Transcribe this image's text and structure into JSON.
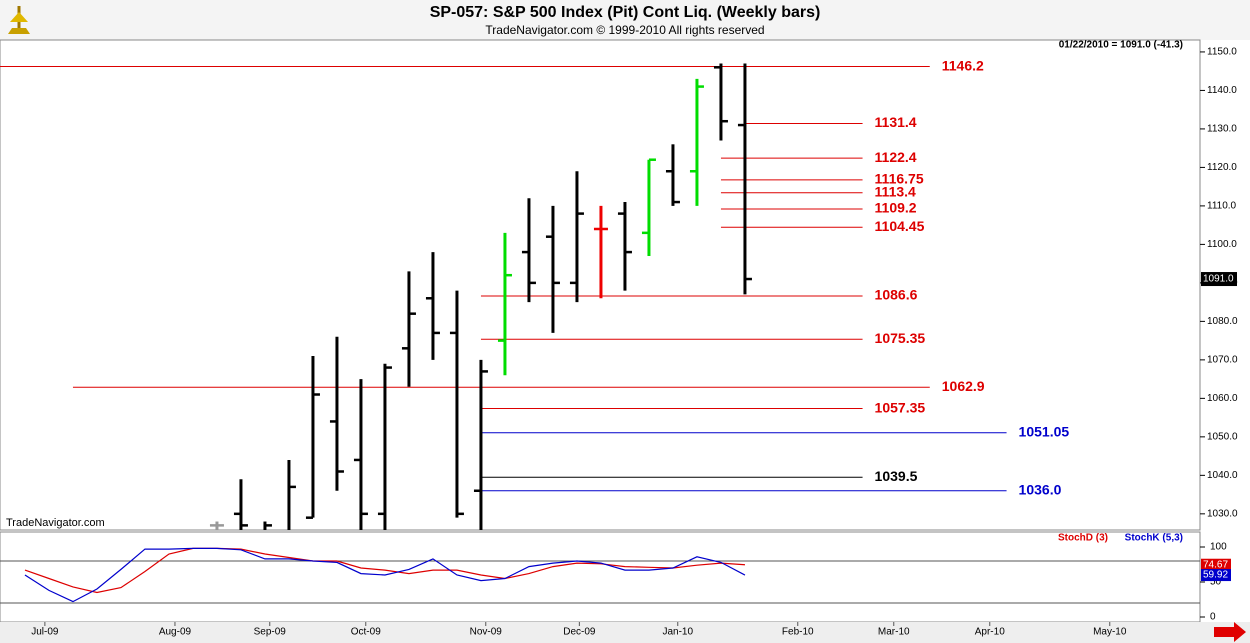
{
  "chart_data": [
    {
      "type": "ohlc",
      "title": "SP-057:  S&P 500 Index (Pit) Cont Liq.  (Weekly bars)",
      "subtitle": "TradeNavigator.com © 1999-2010 All rights reserved",
      "annotation": "01/22/2010 = 1091.0 (-41.3)",
      "watermark": "TradeNavigator.com",
      "xlim": [
        -2.04,
        47.96
      ],
      "x": [
        7,
        8,
        9,
        10,
        11,
        12,
        13,
        14,
        15,
        16,
        17,
        18,
        19,
        20,
        21,
        22,
        23,
        24,
        25,
        26,
        27,
        28,
        29
      ],
      "open": [
        1027,
        1030,
        1025,
        1025,
        1029,
        1054,
        1044,
        1030,
        1073,
        1086,
        1077,
        1036,
        1075,
        1098,
        1102,
        1090,
        1104,
        1108,
        1103,
        1119,
        1119,
        1146,
        1131
      ],
      "high": [
        1028,
        1039,
        1028,
        1044,
        1071,
        1076,
        1065,
        1069,
        1093,
        1098,
        1088,
        1070,
        1103,
        1112,
        1110,
        1119,
        1110,
        1111,
        1122,
        1126,
        1143,
        1147,
        1147
      ],
      "low": [
        1020,
        1020,
        1020,
        1020,
        1029,
        1036,
        1020,
        1020,
        1063,
        1070,
        1029,
        1020,
        1066,
        1085,
        1077,
        1085,
        1086,
        1088,
        1097,
        1110,
        1110,
        1127,
        1087
      ],
      "close": [
        1027,
        1027,
        1027,
        1037,
        1061,
        1041,
        1030,
        1068,
        1082,
        1077,
        1030,
        1067,
        1092,
        1090,
        1090,
        1108,
        1104,
        1098,
        1122,
        1111,
        1141,
        1132,
        1091
      ],
      "colors": [
        "#999999",
        "#000000",
        "#000000",
        "#000000",
        "#000000",
        "#000000",
        "#000000",
        "#000000",
        "#000000",
        "#000000",
        "#000000",
        "#000000",
        "#00dd00",
        "#000000",
        "#000000",
        "#000000",
        "#ee0000",
        "#000000",
        "#00dd00",
        "#000000",
        "#00dd00",
        "#000000",
        "#000000"
      ],
      "last_label": "1091.0",
      "ylim": [
        1025.8,
        1153.1
      ],
      "yticks": [
        {
          "value": 1030,
          "label": "1030.0"
        },
        {
          "value": 1040,
          "label": "1040.0"
        },
        {
          "value": 1050,
          "label": "1050.0"
        },
        {
          "value": 1060,
          "label": "1060.0"
        },
        {
          "value": 1070,
          "label": "1070.0"
        },
        {
          "value": 1080,
          "label": "1080.0"
        },
        {
          "value": 1090,
          "label": "1090.0"
        },
        {
          "value": 1100,
          "label": "1100.0"
        },
        {
          "value": 1110,
          "label": "1110.0"
        },
        {
          "value": 1120,
          "label": "1120.0"
        },
        {
          "value": 1130,
          "label": "1130.0"
        },
        {
          "value": 1140,
          "label": "1140.0"
        },
        {
          "value": 1150,
          "label": "1150.0"
        }
      ],
      "levels": [
        {
          "value": 1146.2,
          "label": "1146.2",
          "color": "#dd0000",
          "from": -2.04,
          "to": 36.7
        },
        {
          "value": 1131.4,
          "label": "1131.4",
          "color": "#dd0000",
          "from": 29,
          "to": 33.9
        },
        {
          "value": 1122.4,
          "label": "1122.4",
          "color": "#dd0000",
          "from": 28,
          "to": 33.9
        },
        {
          "value": 1116.75,
          "label": "1116.75",
          "color": "#dd0000",
          "from": 28,
          "to": 33.9
        },
        {
          "value": 1113.4,
          "label": "1113.4",
          "color": "#dd0000",
          "from": 28,
          "to": 33.9
        },
        {
          "value": 1109.2,
          "label": "1109.2",
          "color": "#dd0000",
          "from": 28,
          "to": 33.9
        },
        {
          "value": 1104.45,
          "label": "1104.45",
          "color": "#dd0000",
          "from": 28,
          "to": 33.9
        },
        {
          "value": 1086.6,
          "label": "1086.6",
          "color": "#dd0000",
          "from": 18,
          "to": 33.9
        },
        {
          "value": 1075.35,
          "label": "1075.35",
          "color": "#dd0000",
          "from": 18,
          "to": 33.9
        },
        {
          "value": 1062.9,
          "label": "1062.9",
          "color": "#dd0000",
          "from": 1,
          "to": 36.7
        },
        {
          "value": 1057.35,
          "label": "1057.35",
          "color": "#dd0000",
          "from": 18,
          "to": 33.9
        },
        {
          "value": 1051.05,
          "label": "1051.05",
          "color": "#0000cc",
          "from": 18,
          "to": 39.9
        },
        {
          "value": 1039.5,
          "label": "1039.5",
          "color": "#000000",
          "from": 18,
          "to": 33.9
        },
        {
          "value": 1036,
          "label": "1036.0",
          "color": "#0000cc",
          "from": 18,
          "to": 39.9
        }
      ]
    },
    {
      "type": "line",
      "xlim": [
        -2.04,
        47.96
      ],
      "x": [
        -1,
        0,
        1,
        2,
        3,
        4,
        5,
        6,
        7,
        8,
        9,
        10,
        11,
        12,
        13,
        14,
        15,
        16,
        17,
        18,
        19,
        20,
        21,
        22,
        23,
        24,
        25,
        26,
        27,
        28,
        29
      ],
      "series": [
        {
          "name": "StochD (3)",
          "color": "#dd0000",
          "values": [
            67,
            55,
            43,
            35,
            42,
            65,
            90,
            98,
            98,
            97,
            90,
            85,
            80,
            80,
            70,
            67,
            62,
            67,
            67,
            60,
            55,
            62,
            72,
            77,
            76,
            72,
            71,
            70,
            74,
            77,
            74.67
          ]
        },
        {
          "name": "StochK (5,3)",
          "color": "#0000cc",
          "values": [
            60,
            38,
            22,
            40,
            68,
            97,
            97,
            98,
            98,
            96,
            83,
            83,
            80,
            78,
            62,
            60,
            68,
            83,
            60,
            52,
            55,
            72,
            77,
            80,
            77,
            67,
            67,
            70,
            86,
            78,
            59.92
          ]
        }
      ],
      "ylim": [
        -7.14,
        121.43
      ],
      "yticks": [
        0,
        50,
        100
      ],
      "hlines": [
        20,
        80
      ],
      "xticks": [
        {
          "value": -0.17,
          "label": "Jul-09"
        },
        {
          "value": 5.25,
          "label": "Aug-09"
        },
        {
          "value": 9.2,
          "label": "Sep-09"
        },
        {
          "value": 13.2,
          "label": "Oct-09"
        },
        {
          "value": 18.2,
          "label": "Nov-09"
        },
        {
          "value": 22.1,
          "label": "Dec-09"
        },
        {
          "value": 26.2,
          "label": "Jan-10"
        },
        {
          "value": 31.2,
          "label": "Feb-10"
        },
        {
          "value": 35.2,
          "label": "Mar-10"
        },
        {
          "value": 39.2,
          "label": "Apr-10"
        },
        {
          "value": 44.2,
          "label": "May-10"
        }
      ]
    }
  ]
}
